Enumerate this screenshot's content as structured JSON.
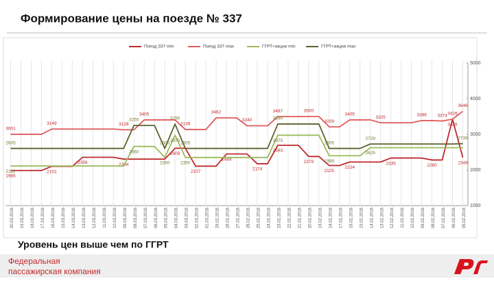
{
  "title": "Формирование цены на поезде № 337",
  "note": "Уровень цен выше чем по ГГРТ",
  "footer": {
    "company": "Федеральная пассажирская компания"
  },
  "chart_data": {
    "type": "line",
    "categories": [
      "20.03.2016",
      "19.03.2016",
      "18.03.2016",
      "17.03.2016",
      "16.03.2016",
      "15.03.2016",
      "14.03.2016",
      "13.03.2016",
      "12.03.2016",
      "11.03.2016",
      "10.03.2016",
      "09.03.2016",
      "08.03.2016",
      "07.03.2016",
      "06.03.2016",
      "05.03.2016",
      "04.03.2016",
      "03.03.2016",
      "02.03.2016",
      "01.03.2016",
      "29.02.2016",
      "28.02.2016",
      "27.02.2016",
      "26.02.2016",
      "25.02.2016",
      "24.02.2016",
      "23.02.2016",
      "22.02.2016",
      "21.02.2016",
      "20.02.2016",
      "19.02.2016",
      "18.02.2016",
      "17.02.2016",
      "16.02.2016",
      "15.02.2016",
      "14.02.2016",
      "13.02.2016",
      "12.02.2016",
      "11.02.2016",
      "10.02.2016",
      "09.02.2016",
      "08.02.2016",
      "07.02.2016",
      "06.02.2016",
      "05.02.2016"
    ],
    "series": [
      {
        "name": "Поезд 337 min",
        "color": "#c0282c",
        "values": [
          1985,
          1985,
          1985,
          1985,
          2102,
          2102,
          2102,
          2356,
          2356,
          2356,
          2356,
          2304,
          2304,
          2304,
          2304,
          2304,
          2609,
          2609,
          2107,
          2107,
          2107,
          2449,
          2449,
          2449,
          2174,
          2174,
          2693,
          2693,
          2693,
          2379,
          2379,
          2125,
          2125,
          2224,
          2224,
          2224,
          2224,
          2335,
          2335,
          2335,
          2335,
          2280,
          2280,
          3426,
          2349
        ]
      },
      {
        "name": "Поезд 337 max",
        "color": "#e05a5a",
        "values": [
          3001,
          3001,
          3001,
          3001,
          3149,
          3149,
          3149,
          3149,
          3149,
          3149,
          3149,
          3128,
          3128,
          3405,
          3405,
          3405,
          3405,
          3136,
          3136,
          3136,
          3462,
          3462,
          3462,
          3240,
          3240,
          3240,
          3497,
          3497,
          3497,
          3500,
          3500,
          3209,
          3209,
          3405,
          3405,
          3405,
          3325,
          3325,
          3325,
          3325,
          3386,
          3386,
          3374,
          3426,
          3646
        ]
      },
      {
        "name": "ГГРТ+акции min",
        "color": "#9bbb59",
        "values": [
          2112,
          2112,
          2112,
          2112,
          2112,
          2112,
          2112,
          2112,
          2112,
          2112,
          2112,
          2112,
          2660,
          2660,
          2660,
          2350,
          2975,
          2350,
          2350,
          2350,
          2350,
          2350,
          2350,
          2350,
          2350,
          2350,
          2975,
          2975,
          2975,
          2975,
          2975,
          2399,
          2399,
          2399,
          2399,
          2625,
          2625,
          2625,
          2625,
          2625,
          2625,
          2625,
          2625,
          2625,
          2625
        ]
      },
      {
        "name": "ГГРТ+акции max",
        "color": "#5f5f2f",
        "values": [
          2605,
          2605,
          2605,
          2605,
          2605,
          2605,
          2605,
          2605,
          2605,
          2605,
          2605,
          2605,
          3250,
          3250,
          3250,
          2605,
          3290,
          2605,
          2605,
          2605,
          2605,
          2605,
          2605,
          2605,
          2605,
          2605,
          3290,
          3290,
          3290,
          3290,
          3290,
          2605,
          2605,
          2605,
          2605,
          2729,
          2729,
          2729,
          2729,
          2729,
          2729,
          2729,
          2729,
          2729,
          2739
        ]
      }
    ],
    "ylim": [
      1000,
      5000
    ],
    "yticks": [
      1000,
      2000,
      3000,
      4000,
      5000
    ],
    "grid": "x"
  }
}
